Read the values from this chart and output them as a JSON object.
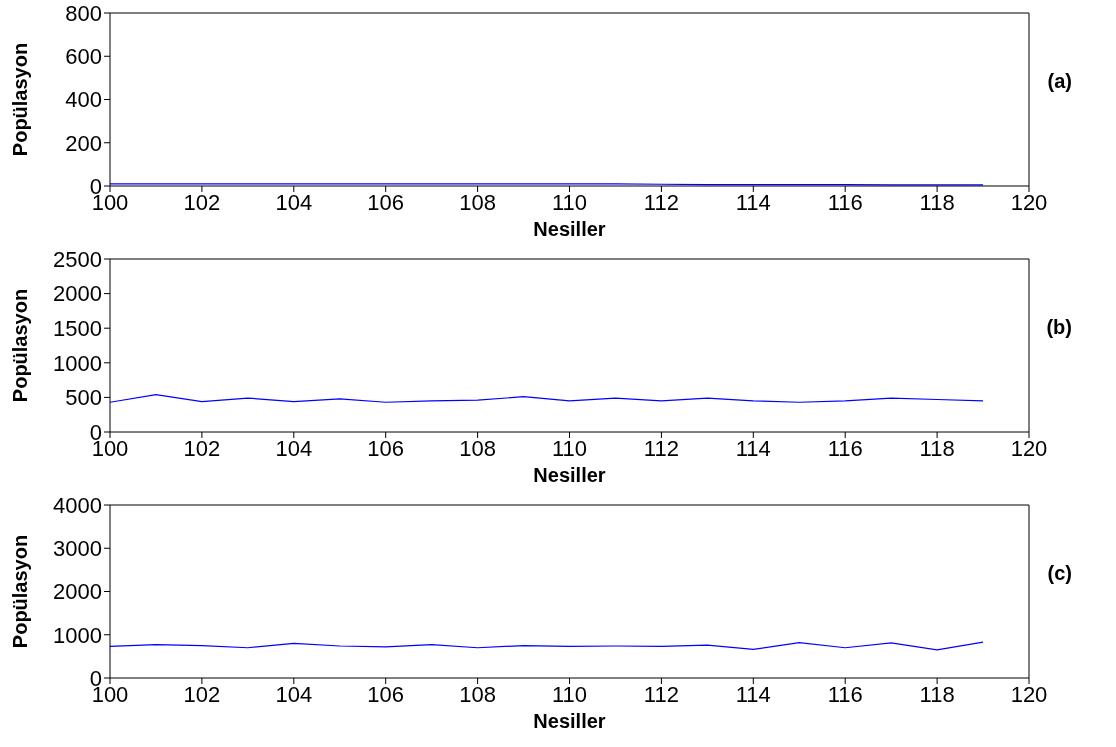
{
  "chart_data": [
    {
      "type": "line",
      "x": [
        100,
        101,
        102,
        103,
        104,
        105,
        106,
        107,
        108,
        109,
        110,
        111,
        112,
        113,
        114,
        115,
        116,
        117,
        118,
        119
      ],
      "series": [
        {
          "color": "#0000ff",
          "values": [
            10,
            10,
            10,
            10,
            10,
            10,
            10,
            10,
            10,
            10,
            10,
            10,
            8,
            6,
            6,
            6,
            6,
            5,
            5,
            5
          ]
        }
      ],
      "xlim": [
        100,
        120
      ],
      "xticks": [
        100,
        102,
        104,
        106,
        108,
        110,
        112,
        114,
        116,
        118,
        120
      ],
      "ylim": [
        0,
        800
      ],
      "yticks": [
        0,
        200,
        400,
        600,
        800
      ],
      "xlabel": "Nesiller",
      "ylabel": "Popülasyon",
      "annotations": [
        "(a)"
      ],
      "grid": false
    },
    {
      "type": "line",
      "x": [
        100,
        101,
        102,
        103,
        104,
        105,
        106,
        107,
        108,
        109,
        110,
        111,
        112,
        113,
        114,
        115,
        116,
        117,
        118,
        119
      ],
      "series": [
        {
          "color": "#0000ff",
          "values": [
            430,
            540,
            440,
            490,
            440,
            480,
            430,
            450,
            460,
            510,
            450,
            490,
            450,
            490,
            450,
            430,
            450,
            490,
            470,
            450
          ]
        }
      ],
      "xlim": [
        100,
        120
      ],
      "xticks": [
        100,
        102,
        104,
        106,
        108,
        110,
        112,
        114,
        116,
        118,
        120
      ],
      "ylim": [
        0,
        2500
      ],
      "yticks": [
        0,
        500,
        1000,
        1500,
        2000,
        2500
      ],
      "xlabel": "Nesiller",
      "ylabel": "Popülasyon",
      "annotations": [
        "(b)"
      ],
      "grid": false
    },
    {
      "type": "line",
      "x": [
        100,
        101,
        102,
        103,
        104,
        105,
        106,
        107,
        108,
        109,
        110,
        111,
        112,
        113,
        114,
        115,
        116,
        117,
        118,
        119
      ],
      "series": [
        {
          "color": "#0000ff",
          "values": [
            730,
            770,
            750,
            700,
            800,
            740,
            720,
            770,
            700,
            750,
            730,
            740,
            730,
            760,
            660,
            820,
            700,
            810,
            650,
            830
          ]
        }
      ],
      "xlim": [
        100,
        120
      ],
      "xticks": [
        100,
        102,
        104,
        106,
        108,
        110,
        112,
        114,
        116,
        118,
        120
      ],
      "ylim": [
        0,
        4000
      ],
      "yticks": [
        0,
        1000,
        2000,
        3000,
        4000
      ],
      "xlabel": "Nesiller",
      "ylabel": "Popülasyon",
      "annotations": [
        "(c)"
      ],
      "grid": false
    }
  ]
}
